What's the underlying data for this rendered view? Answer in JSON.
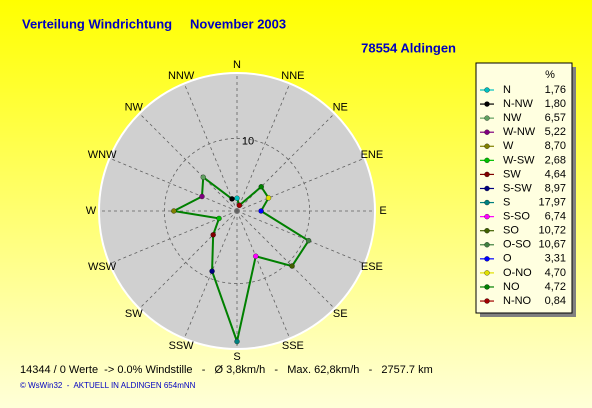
{
  "chart_data": {
    "type": "radar",
    "title": "Verteilung Windrichtung",
    "period": "November 2003",
    "subtitle": "78554 Aldingen",
    "categories": [
      "N",
      "NNE",
      "NE",
      "ENE",
      "E",
      "ESE",
      "SE",
      "SSE",
      "S",
      "SSW",
      "SW",
      "WSW",
      "W",
      "WNW",
      "NW",
      "NNW"
    ],
    "series": [
      {
        "color": "#008000",
        "legend_names": [
          "N",
          "N-NO",
          "NO",
          "O-NO",
          "O",
          "O-SO",
          "SO",
          "S-SO",
          "S",
          "S-SW",
          "SW",
          "W-SW",
          "W",
          "W-NW",
          "NW",
          "N-NW"
        ],
        "values": [
          1.76,
          0.84,
          4.72,
          4.7,
          3.31,
          10.67,
          10.72,
          6.74,
          17.97,
          8.97,
          4.64,
          2.68,
          8.7,
          5.22,
          6.57,
          1.8
        ],
        "value_labels": [
          "1,76",
          "0,84",
          "4,72",
          "4,70",
          "3,31",
          "10,67",
          "10,72",
          "6,74",
          "17,97",
          "8,97",
          "4,64",
          "2,68",
          "8,70",
          "5,22",
          "6,57",
          "1,80"
        ],
        "point_colors": [
          "#00c0c0",
          "#a00000",
          "#008000",
          "#e0e000",
          "#0000ff",
          "#408040",
          "#406000",
          "#ff00ff",
          "#008080",
          "#000080",
          "#800000",
          "#00c000",
          "#808000",
          "#800080",
          "#60a060",
          "#000000"
        ]
      }
    ],
    "legend_header": "%",
    "rlim": [
      0,
      19
    ],
    "rticks": [
      10
    ],
    "footer": "14344 / 0 Werte  -> 0.0% Windstille   -   Ø 3,8km/h   -   Max. 62,8km/h   -   2757.7 km",
    "credit": "© WsWin32  -  AKTUELL IN ALDINGEN 654mNN"
  }
}
